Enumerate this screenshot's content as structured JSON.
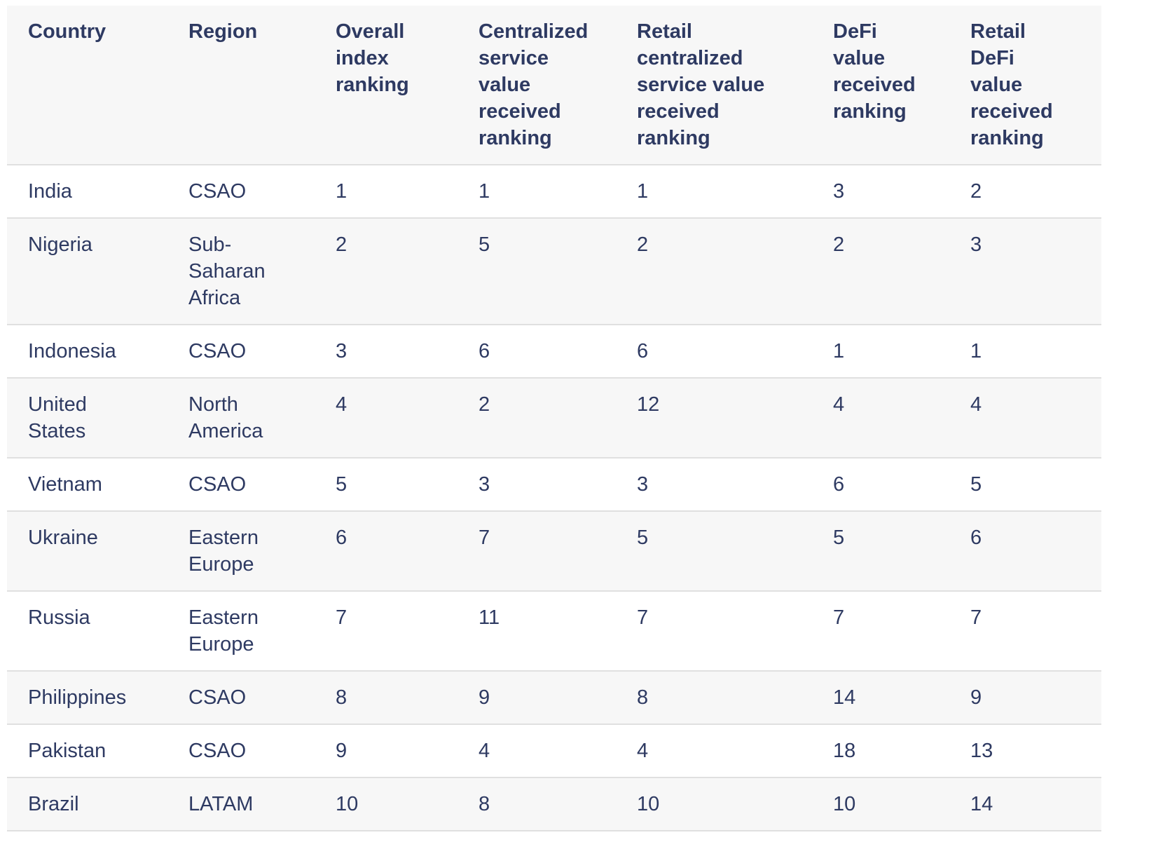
{
  "colors": {
    "text_navy": "#2e3a62",
    "row_stripe": "#f7f7f7",
    "divider": "#e0e0e0",
    "background": "#ffffff"
  },
  "chart_data": {
    "type": "table",
    "columns": [
      "Country",
      "Region",
      "Overall index ranking",
      "Centralized service value received ranking",
      "Retail centralized service value received ranking",
      "DeFi value received ranking",
      "Retail DeFi value received ranking"
    ],
    "rows": [
      [
        "India",
        "CSAO",
        "1",
        "1",
        "1",
        "3",
        "2"
      ],
      [
        "Nigeria",
        "Sub-Saharan Africa",
        "2",
        "5",
        "2",
        "2",
        "3"
      ],
      [
        "Indonesia",
        "CSAO",
        "3",
        "6",
        "6",
        "1",
        "1"
      ],
      [
        "United States",
        "North America",
        "4",
        "2",
        "12",
        "4",
        "4"
      ],
      [
        "Vietnam",
        "CSAO",
        "5",
        "3",
        "3",
        "6",
        "5"
      ],
      [
        "Ukraine",
        "Eastern Europe",
        "6",
        "7",
        "5",
        "5",
        "6"
      ],
      [
        "Russia",
        "Eastern Europe",
        "7",
        "11",
        "7",
        "7",
        "7"
      ],
      [
        "Philippines",
        "CSAO",
        "8",
        "9",
        "8",
        "14",
        "9"
      ],
      [
        "Pakistan",
        "CSAO",
        "9",
        "4",
        "4",
        "18",
        "13"
      ],
      [
        "Brazil",
        "LATAM",
        "10",
        "8",
        "10",
        "10",
        "14"
      ]
    ]
  }
}
